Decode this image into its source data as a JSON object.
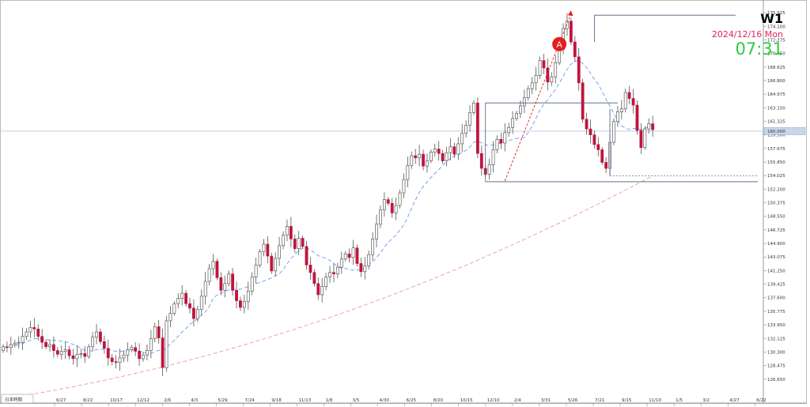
{
  "header": {
    "timeframe": "W1",
    "date": "2024/12/16 Mon",
    "time": "07:31",
    "date_color": "#e0245e",
    "time_color": "#2ecc40"
  },
  "session_label": "日本時間",
  "chart_data": {
    "type": "candlestick",
    "ylim": [
      124.5,
      177.0
    ],
    "y_ticks": [
      "175.925",
      "174.100",
      "172.275",
      "170.450",
      "168.625",
      "166.800",
      "164.975",
      "163.150",
      "161.325",
      "159.500",
      "157.675",
      "155.850",
      "154.025",
      "152.200",
      "150.375",
      "148.550",
      "146.725",
      "144.900",
      "143.075",
      "141.250",
      "139.425",
      "137.600",
      "135.775",
      "133.950",
      "132.125",
      "130.300",
      "128.475",
      "126.650"
    ],
    "x_ticks": [
      "6/27",
      "8/22",
      "10/17",
      "12/12",
      "2/6",
      "4/3",
      "5/29",
      "7/24",
      "9/18",
      "11/13",
      "1/8",
      "3/5",
      "4/30",
      "6/25",
      "8/20",
      "10/15",
      "12/10",
      "2/4",
      "3/31",
      "5/26",
      "7/21",
      "9/15",
      "11/10",
      "1/5",
      "3/2",
      "4/27",
      "6/22"
    ],
    "current_price": "160.000",
    "colors": {
      "bull": "#ffffff",
      "bear": "#c0143c",
      "wick": "#555555",
      "ma_fast": "#6a9be8",
      "ma_slow": "#e89aa6",
      "line": "#4a5a7a",
      "marker": "#e02020"
    },
    "closes": [
      131.0,
      130.9,
      131.3,
      131.5,
      131.6,
      132.4,
      133.0,
      133.6,
      133.4,
      132.4,
      131.6,
      131.0,
      131.3,
      130.5,
      130.0,
      130.4,
      130.6,
      129.8,
      129.4,
      130.0,
      130.1,
      129.7,
      131.0,
      132.3,
      133.0,
      131.7,
      130.8,
      129.5,
      129.0,
      128.9,
      129.5,
      129.9,
      130.6,
      130.9,
      130.4,
      129.4,
      129.9,
      130.5,
      132.1,
      133.7,
      132.2,
      128.2,
      134.5,
      135.5,
      136.8,
      137.5,
      138.2,
      136.8,
      136.2,
      134.8,
      136.0,
      137.8,
      139.8,
      141.5,
      142.5,
      140.3,
      138.6,
      139.5,
      140.8,
      138.6,
      137.2,
      136.3,
      137.1,
      138.5,
      140.4,
      142.0,
      143.8,
      144.8,
      143.2,
      141.2,
      142.9,
      144.6,
      146.0,
      147.2,
      145.5,
      144.2,
      145.6,
      144.5,
      142.0,
      141.0,
      139.5,
      138.0,
      139.1,
      140.4,
      141.0,
      140.8,
      141.7,
      142.8,
      143.5,
      143.0,
      144.3,
      142.2,
      141.1,
      141.9,
      143.4,
      145.5,
      147.5,
      149.4,
      150.8,
      150.3,
      149.0,
      150.0,
      151.7,
      153.5,
      155.4,
      156.7,
      156.4,
      156.9,
      155.3,
      156.0,
      157.2,
      157.6,
      157.0,
      156.0,
      157.1,
      157.9,
      156.9,
      158.3,
      159.7,
      160.8,
      162.5,
      163.8,
      157.0,
      155.0,
      154.2,
      155.5,
      157.5,
      158.9,
      158.4,
      159.8,
      160.5,
      161.7,
      162.4,
      163.4,
      164.5,
      165.7,
      166.5,
      167.5,
      169.5,
      168.5,
      166.6,
      167.3,
      169.2,
      171.0,
      173.8,
      174.8,
      172.0,
      170.0,
      166.5,
      161.6,
      160.3,
      159.5,
      158.2,
      157.5,
      155.8,
      155.0,
      158.5,
      161.3,
      162.6,
      163.0,
      165.2,
      164.4,
      163.5,
      160.1,
      157.8,
      160.3,
      161.0,
      160.2
    ]
  },
  "annotations": {
    "marker_label": "A"
  }
}
